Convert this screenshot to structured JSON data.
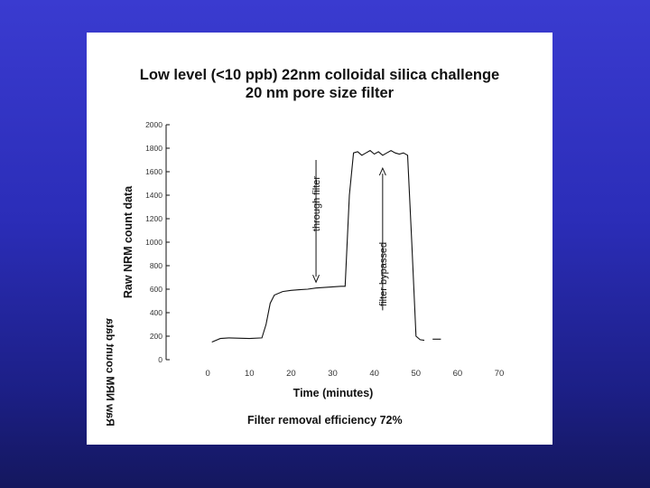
{
  "colors": {
    "background_top": "#3a3bd0",
    "background_bottom": "#14175e",
    "panel": "#ffffff",
    "line": "#111111"
  },
  "slide": {
    "title_line1": "Low level (<10 ppb) 22nm colloidal silica challenge",
    "title_line2": "20 nm pore size filter",
    "footer": "Filter removal efficiency 72%"
  },
  "chart_data": {
    "type": "line",
    "xlabel": "Time (minutes)",
    "ylabel": "Raw NRM count data",
    "xlim": [
      -10,
      70
    ],
    "ylim": [
      0,
      2000
    ],
    "x_ticks": [
      0,
      10,
      20,
      30,
      40,
      50,
      60,
      70
    ],
    "y_ticks": [
      0,
      200,
      400,
      600,
      800,
      1000,
      1200,
      1400,
      1600,
      1800,
      2000
    ],
    "grid": false,
    "series": [
      {
        "values": [
          [
            1,
            150
          ],
          [
            3,
            180
          ],
          [
            5,
            185
          ],
          [
            8,
            182
          ],
          [
            10,
            180
          ],
          [
            13,
            185
          ],
          [
            14,
            300
          ],
          [
            15,
            480
          ],
          [
            16,
            550
          ],
          [
            18,
            580
          ],
          [
            20,
            590
          ],
          [
            22,
            595
          ],
          [
            24,
            600
          ],
          [
            26,
            610
          ],
          [
            28,
            615
          ],
          [
            30,
            620
          ],
          [
            32,
            625
          ],
          [
            33,
            625
          ],
          [
            34,
            1400
          ],
          [
            35,
            1760
          ],
          [
            36,
            1770
          ],
          [
            37,
            1740
          ],
          [
            38,
            1760
          ],
          [
            39,
            1780
          ],
          [
            40,
            1750
          ],
          [
            41,
            1770
          ],
          [
            42,
            1740
          ],
          [
            43,
            1760
          ],
          [
            44,
            1780
          ],
          [
            45,
            1760
          ],
          [
            46,
            1750
          ],
          [
            47,
            1760
          ],
          [
            48,
            1740
          ],
          [
            49,
            1000
          ],
          [
            50,
            200
          ],
          [
            51,
            170
          ],
          [
            52,
            165
          ]
        ]
      },
      {
        "values": [
          [
            54,
            175
          ],
          [
            56,
            175
          ]
        ]
      }
    ],
    "annotations": [
      {
        "text": "through filter",
        "arrow_from": [
          26,
          1700
        ],
        "arrow_to": [
          26,
          660
        ]
      },
      {
        "text": "filter bypassed",
        "arrow_from": [
          42,
          420
        ],
        "arrow_to": [
          42,
          1630
        ]
      }
    ],
    "mirrored_fragment": "Raw NRM count data"
  }
}
